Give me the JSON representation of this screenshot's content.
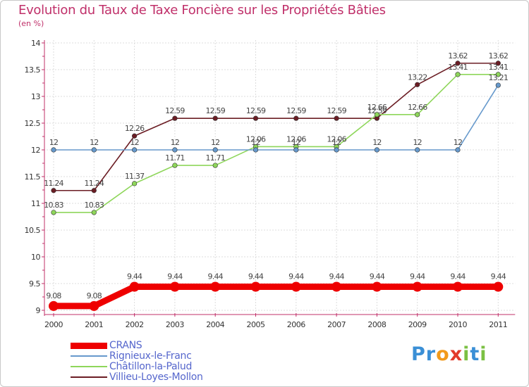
{
  "chart_data": {
    "type": "line",
    "title": "Evolution du Taux de Taxe Foncière sur les Propriétés Bâties",
    "subtitle": "(en %)",
    "categories": [
      "2000",
      "2001",
      "2002",
      "2003",
      "2004",
      "2005",
      "2006",
      "2007",
      "2008",
      "2009",
      "2010",
      "2011"
    ],
    "ylim": [
      9,
      14
    ],
    "yticks": [
      "9",
      "9.5",
      "10",
      "10.5",
      "11",
      "11.5",
      "12",
      "12.5",
      "13",
      "13.5",
      "14"
    ],
    "grid": true,
    "series": [
      {
        "name": "Villieu-Loyes-Mollon",
        "color": "#6b1d24",
        "values": [
          11.24,
          11.24,
          12.26,
          12.59,
          12.59,
          12.59,
          12.59,
          12.59,
          12.59,
          13.22,
          13.62,
          13.62
        ],
        "labels": [
          "11.24",
          "11.24",
          "12.26",
          "12.59",
          "12.59",
          "12.59",
          "12.59",
          "12.59",
          "12.59",
          "13.22",
          "13.62",
          "13.62"
        ]
      },
      {
        "name": "Châtillon-la-Palud",
        "color": "#8ed65a",
        "values": [
          10.83,
          10.83,
          11.37,
          11.71,
          11.71,
          12.06,
          12.06,
          12.06,
          12.66,
          12.66,
          13.41,
          13.41
        ],
        "labels": [
          "10.83",
          "10.83",
          "11.37",
          "11.71",
          "11.71",
          "12.06",
          "12.06",
          "12.06",
          "12.66",
          "12.66",
          "13.41",
          "13.41"
        ]
      },
      {
        "name": "Rignieux-le-Franc",
        "color": "#6699cc",
        "values": [
          12,
          12,
          12,
          12,
          12,
          12,
          12,
          12,
          12,
          12,
          12,
          13.21
        ],
        "labels": [
          "12",
          "12",
          "12",
          "12",
          "12",
          "12",
          "12",
          "12",
          "12",
          "12",
          "12",
          "13.21"
        ]
      },
      {
        "name": "CRANS",
        "color": "#ee0000",
        "values": [
          9.08,
          9.08,
          9.44,
          9.44,
          9.44,
          9.44,
          9.44,
          9.44,
          9.44,
          9.44,
          9.44,
          9.44
        ],
        "labels": [
          "9.08",
          "9.08",
          "9.44",
          "9.44",
          "9.44",
          "9.44",
          "9.44",
          "9.44",
          "9.44",
          "9.44",
          "9.44",
          "9.44"
        ]
      }
    ]
  },
  "legend": [
    {
      "name": "CRANS",
      "color": "#ee0000",
      "text_color": "#5566cc"
    },
    {
      "name": "Rignieux-le-Franc",
      "color": "#6699cc",
      "text_color": "#5566cc"
    },
    {
      "name": "Châtillon-la-Palud",
      "color": "#8ed65a",
      "text_color": "#5566cc"
    },
    {
      "name": "Villieu-Loyes-Mollon",
      "color": "#6b1d24",
      "text_color": "#5566cc"
    }
  ],
  "brand": {
    "letters": [
      "P",
      "r",
      "o",
      "x",
      "i",
      "t",
      "i"
    ],
    "colors": [
      "#3a8fd6",
      "#3a8fd6",
      "#f29a1a",
      "#e23a2a",
      "#7bc043",
      "#3a8fd6",
      "#7bc043"
    ]
  }
}
